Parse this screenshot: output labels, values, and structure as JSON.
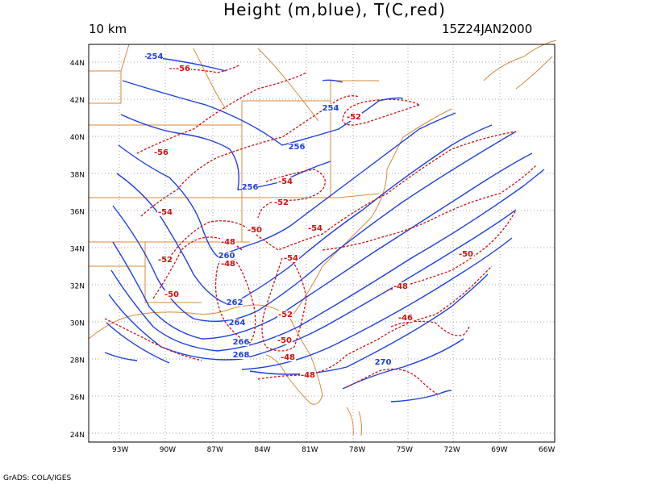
{
  "header": {
    "title": "Height (m,blue), T(C,red)",
    "level": "10 km",
    "valid_time": "15Z24JAN2000"
  },
  "footer": {
    "credit": "GrADS: COLA/IGES"
  },
  "colors": {
    "height": "#2040e0",
    "temperature": "#d01010",
    "coast": "#d88a3a",
    "grid": "#888888",
    "frame": "#000000"
  },
  "axes": {
    "lon_ticks": [
      "93W",
      "90W",
      "87W",
      "84W",
      "81W",
      "78W",
      "75W",
      "72W",
      "69W",
      "66W"
    ],
    "lat_ticks": [
      "44N",
      "42N",
      "40N",
      "38N",
      "36N",
      "34N",
      "32N",
      "30N",
      "28N",
      "26N",
      "24N"
    ],
    "lon_range": [
      -95,
      -65.5
    ],
    "lat_range": [
      23.6,
      45
    ],
    "grid": true
  },
  "height_labels": [
    "254",
    "254",
    "256",
    "256",
    "260",
    "262",
    "264",
    "266",
    "268",
    "270"
  ],
  "temperature_labels": [
    "-56",
    "-52",
    "-56",
    "-54",
    "-54",
    "-52",
    "-54",
    "-48",
    "-50",
    "-54",
    "-52",
    "-48",
    "-50",
    "-52",
    "-50",
    "-48",
    "-48",
    "-50",
    "-48",
    "-46"
  ]
}
